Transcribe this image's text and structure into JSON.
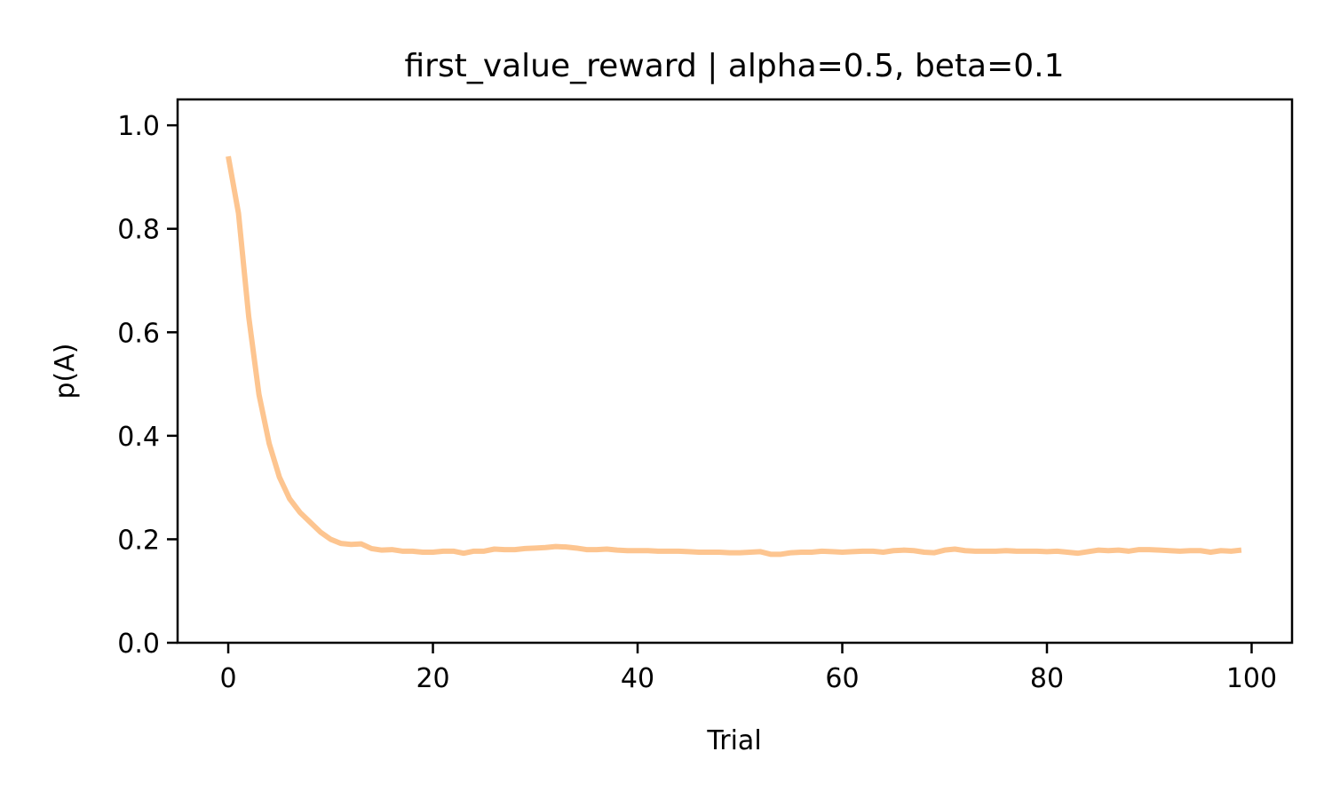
{
  "chart_data": {
    "type": "line",
    "title": "first_value_reward | alpha=0.5, beta=0.1",
    "xlabel": "Trial",
    "ylabel": "p(A)",
    "xlim": [
      -4.95,
      103.95
    ],
    "ylim": [
      0.0,
      1.05
    ],
    "xticks": [
      0,
      20,
      40,
      60,
      80,
      100
    ],
    "yticks": [
      0.0,
      0.2,
      0.4,
      0.6,
      0.8,
      1.0
    ],
    "xtick_labels": [
      "0",
      "20",
      "40",
      "60",
      "80",
      "100"
    ],
    "ytick_labels": [
      "0.0",
      "0.2",
      "0.4",
      "0.6",
      "0.8",
      "1.0"
    ],
    "grid": false,
    "line_color": "#FDC590",
    "series": [
      {
        "x": [
          0,
          1,
          2,
          3,
          4,
          5,
          6,
          7,
          8,
          9,
          10,
          11,
          12,
          13,
          14,
          15,
          16,
          17,
          18,
          19,
          20,
          21,
          22,
          23,
          24,
          25,
          26,
          27,
          28,
          29,
          30,
          31,
          32,
          33,
          34,
          35,
          36,
          37,
          38,
          39,
          40,
          41,
          42,
          43,
          44,
          45,
          46,
          47,
          48,
          49,
          50,
          51,
          52,
          53,
          54,
          55,
          56,
          57,
          58,
          59,
          60,
          61,
          62,
          63,
          64,
          65,
          66,
          67,
          68,
          69,
          70,
          71,
          72,
          73,
          74,
          75,
          76,
          77,
          78,
          79,
          80,
          81,
          82,
          83,
          84,
          85,
          86,
          87,
          88,
          89,
          90,
          91,
          92,
          93,
          94,
          95,
          96,
          97,
          98,
          99
        ],
        "values": [
          0.94,
          0.83,
          0.63,
          0.48,
          0.385,
          0.32,
          0.278,
          0.252,
          0.233,
          0.214,
          0.2,
          0.192,
          0.19,
          0.191,
          0.182,
          0.179,
          0.18,
          0.177,
          0.177,
          0.175,
          0.175,
          0.177,
          0.177,
          0.173,
          0.177,
          0.177,
          0.181,
          0.18,
          0.18,
          0.182,
          0.183,
          0.184,
          0.186,
          0.185,
          0.183,
          0.18,
          0.18,
          0.181,
          0.179,
          0.178,
          0.178,
          0.178,
          0.177,
          0.177,
          0.177,
          0.176,
          0.175,
          0.175,
          0.175,
          0.174,
          0.174,
          0.175,
          0.176,
          0.171,
          0.171,
          0.174,
          0.175,
          0.175,
          0.177,
          0.176,
          0.175,
          0.176,
          0.177,
          0.177,
          0.175,
          0.178,
          0.179,
          0.178,
          0.175,
          0.174,
          0.179,
          0.181,
          0.178,
          0.177,
          0.177,
          0.177,
          0.178,
          0.177,
          0.177,
          0.177,
          0.176,
          0.177,
          0.175,
          0.173,
          0.176,
          0.179,
          0.178,
          0.179,
          0.177,
          0.18,
          0.18,
          0.179,
          0.178,
          0.177,
          0.178,
          0.178,
          0.175,
          0.178,
          0.177,
          0.179
        ]
      }
    ]
  }
}
